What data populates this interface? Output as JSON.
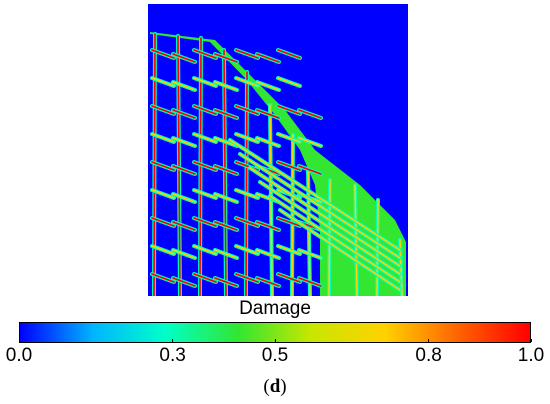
{
  "colorbar": {
    "title": "Damage",
    "colors": [
      "#0000ff",
      "#00b4ff",
      "#00ffc8",
      "#32e632",
      "#c8e600",
      "#ffd200",
      "#ff6400",
      "#ff0000"
    ],
    "ticks": [
      {
        "value": 0.0,
        "label": "0.0"
      },
      {
        "value": 0.3,
        "label": "0.3"
      },
      {
        "value": 0.5,
        "label": "0.5"
      },
      {
        "value": 0.8,
        "label": "0.8"
      },
      {
        "value": 1.0,
        "label": "1.0"
      }
    ]
  },
  "caption": {
    "open": "(",
    "letter": "d",
    "close": ")"
  },
  "plot": {
    "background_color": "#0000ff",
    "crack_edge_color": "#00ffb4",
    "crack_core_color": "#ffd200",
    "damage_hot_color": "#ff0000",
    "saturated_zone_color": "#32e632"
  }
}
